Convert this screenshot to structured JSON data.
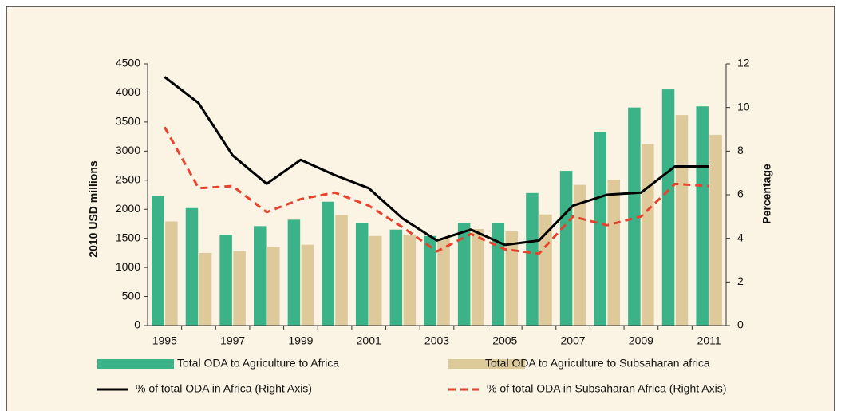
{
  "chart_data": {
    "type": "bar_line",
    "y_label": "2010 USD millions",
    "y2_label": "Percentage",
    "categories": [
      "1995",
      null,
      "1997",
      null,
      "1999",
      null,
      "2001",
      null,
      "2003",
      null,
      "2005",
      null,
      "2007",
      null,
      "2009",
      null,
      "2011"
    ],
    "ylim": [
      0,
      4500
    ],
    "yticks": [
      0,
      500,
      1000,
      1500,
      2000,
      2500,
      3000,
      3500,
      4000,
      4500
    ],
    "y2lim": [
      0,
      12
    ],
    "y2ticks": [
      0,
      2,
      4,
      6,
      8,
      10,
      12
    ],
    "series": [
      {
        "name": "Total ODA to Agriculture to Africa",
        "type": "bar",
        "color": "#3bb287",
        "values": [
          2230,
          2020,
          1560,
          1710,
          1820,
          2130,
          1760,
          1650,
          1540,
          1770,
          1760,
          2280,
          2660,
          3320,
          3750,
          4060,
          3770
        ]
      },
      {
        "name": "Total ODA to Agriculture to Subsaharan africa",
        "type": "bar",
        "color": "#ddc99a",
        "values": [
          1790,
          1250,
          1280,
          1350,
          1390,
          1900,
          1540,
          1560,
          1500,
          1660,
          1620,
          1910,
          2420,
          2510,
          3120,
          3620,
          3280
        ]
      },
      {
        "name": "% of total ODA in Africa (Right Axis)",
        "type": "line",
        "axis": "y2",
        "color": "#000000",
        "values": [
          11.4,
          10.2,
          7.8,
          6.5,
          7.6,
          6.9,
          6.3,
          4.9,
          3.9,
          4.4,
          3.7,
          3.9,
          5.5,
          6.0,
          6.1,
          7.3,
          7.3
        ]
      },
      {
        "name": "% of total ODA in Subsaharan Africa (Right Axis)",
        "type": "line",
        "axis": "y2",
        "color": "#e8412c",
        "dashed": true,
        "values": [
          9.1,
          6.3,
          6.4,
          5.2,
          5.8,
          6.1,
          5.5,
          4.5,
          3.4,
          4.2,
          3.5,
          3.3,
          5.0,
          4.6,
          5.0,
          6.5,
          6.4
        ]
      }
    ]
  }
}
